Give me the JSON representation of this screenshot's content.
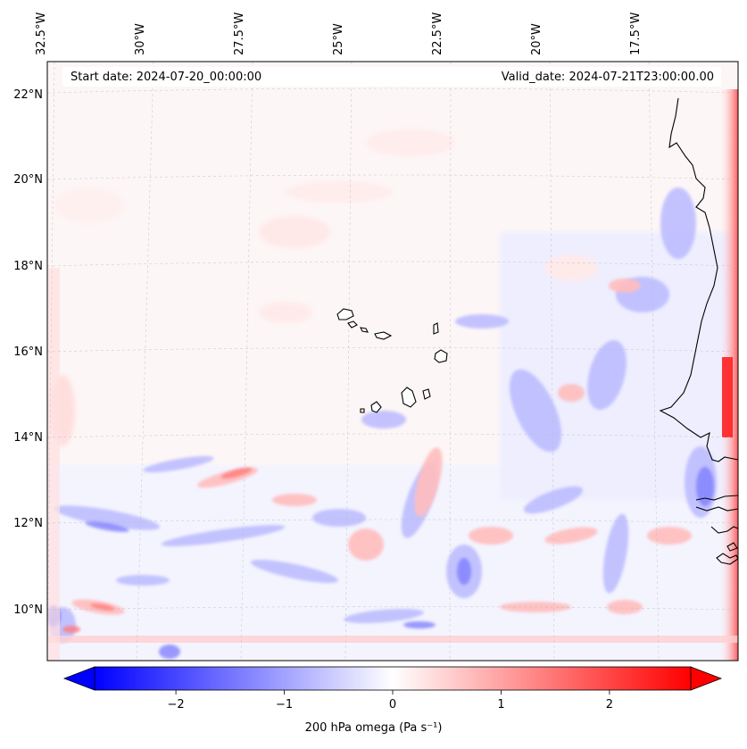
{
  "map": {
    "header_left": "Start date: 2024-07-20_00:00:00",
    "header_right": "Valid_date: 2024-07-21T23:00:00.00",
    "lon_labels": [
      "32.5°W",
      "30°W",
      "27.5°W",
      "25°W",
      "22.5°W",
      "20°W",
      "17.5°W"
    ],
    "lat_labels": [
      "22°N",
      "20°N",
      "18°N",
      "16°N",
      "14°N",
      "12°N",
      "10°N"
    ],
    "field": "200 hPa omega",
    "colormap": "bwr",
    "colormap_colors": {
      "negative": "#0000ff",
      "zero": "#ffffff",
      "positive": "#ff0000"
    },
    "coastline_color": "#000000",
    "gridlines": true
  },
  "colorbar": {
    "label": "200 hPa omega (Pa s⁻¹)",
    "ticks": [
      "−2",
      "−1",
      "0",
      "1",
      "2"
    ],
    "tick_values": [
      -2,
      -1,
      0,
      1,
      2
    ],
    "range": [
      -2.75,
      2.75
    ],
    "extend": "both"
  }
}
